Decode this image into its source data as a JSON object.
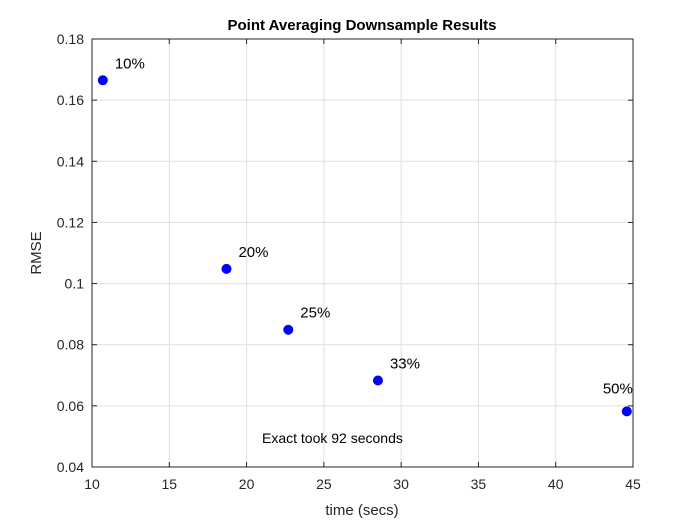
{
  "chart_data": {
    "type": "scatter",
    "title": "Point Averaging Downsample Results",
    "xlabel": "time (secs)",
    "ylabel": "RMSE",
    "xlim": [
      10,
      45
    ],
    "ylim": [
      0.04,
      0.18
    ],
    "xticks": [
      "10",
      "15",
      "20",
      "25",
      "30",
      "35",
      "40",
      "45"
    ],
    "yticks": [
      "0.04",
      "0.06",
      "0.08",
      "0.1",
      "0.12",
      "0.14",
      "0.16",
      "0.18"
    ],
    "grid": true,
    "color": "#0000ff",
    "points": [
      {
        "x": 10.7,
        "y": 0.1665,
        "label": "10%"
      },
      {
        "x": 18.7,
        "y": 0.1048,
        "label": "20%"
      },
      {
        "x": 22.7,
        "y": 0.0849,
        "label": "25%"
      },
      {
        "x": 28.5,
        "y": 0.0683,
        "label": "33%"
      },
      {
        "x": 44.6,
        "y": 0.0582,
        "label": "50%"
      }
    ],
    "annotation": {
      "text": "Exact took 92 seconds",
      "x": 21,
      "y": 0.0478
    }
  }
}
